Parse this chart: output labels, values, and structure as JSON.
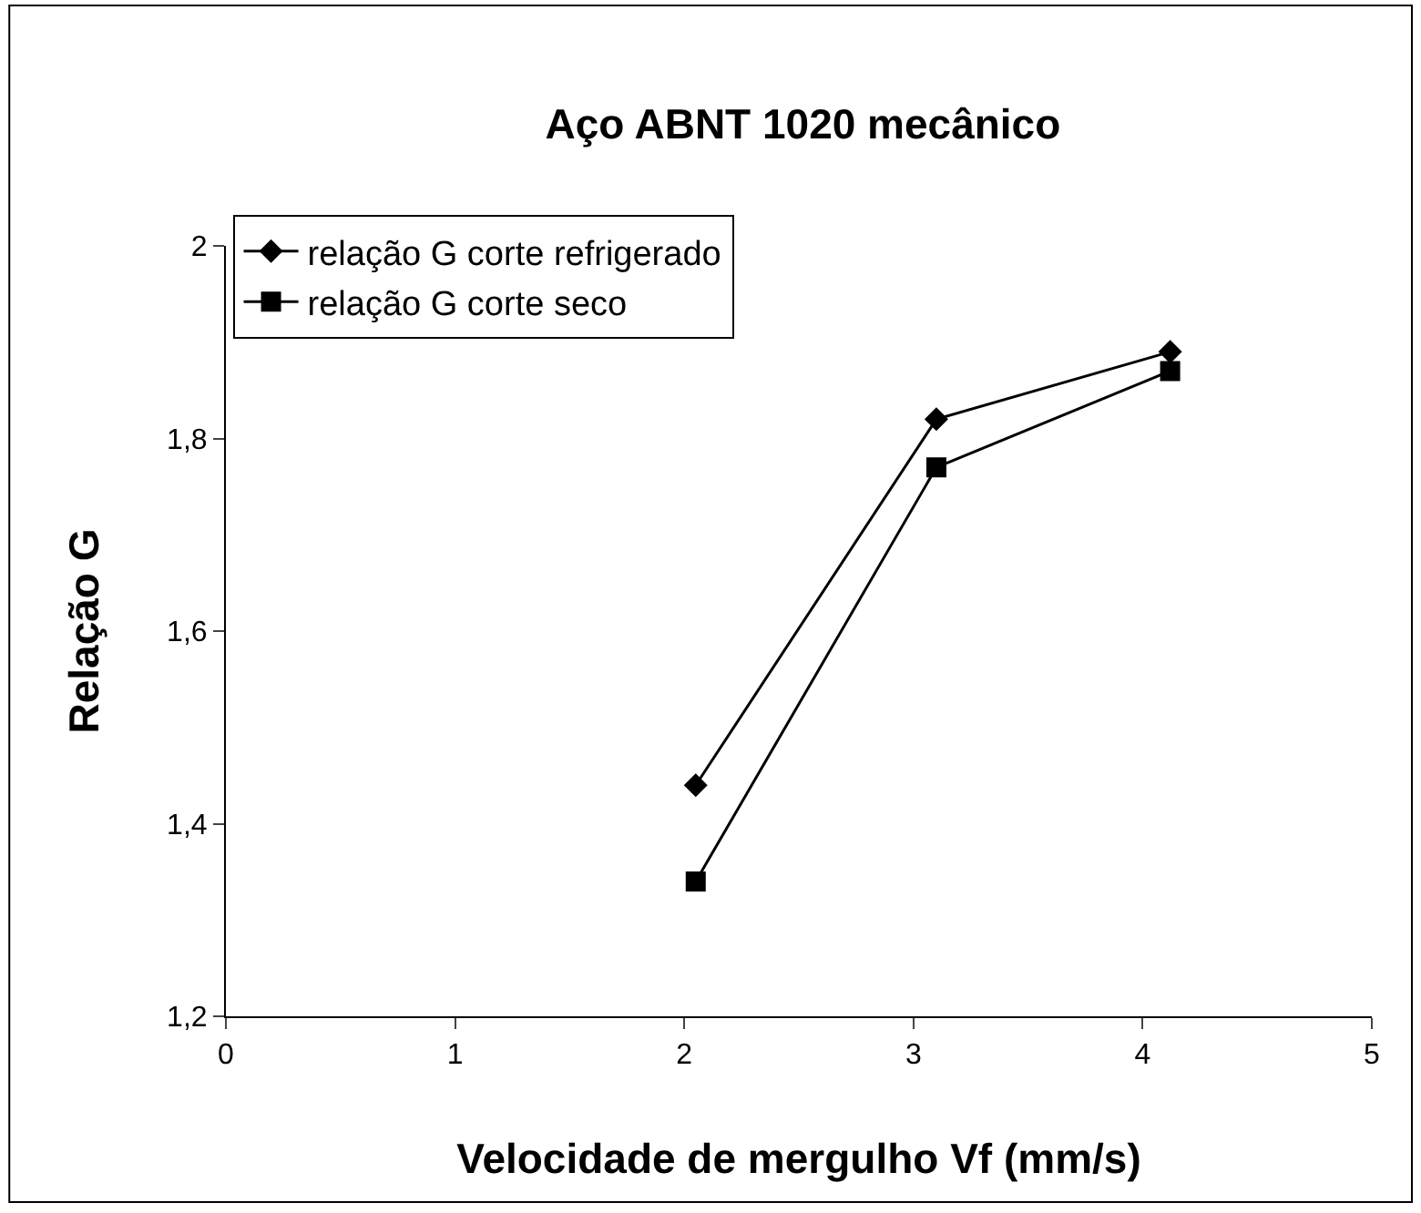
{
  "chart_data": {
    "type": "line",
    "title": "Aço ABNT 1020 mecânico",
    "xlabel": "Velocidade de mergulho Vf (mm/s)",
    "ylabel": "Relação G",
    "series": [
      {
        "name": "relação G corte refrigerado",
        "color": "#000000",
        "marker": "diamond",
        "x": [
          2.05,
          3.1,
          4.12
        ],
        "values": [
          1.44,
          1.82,
          1.89
        ]
      },
      {
        "name": "relação G corte seco",
        "color": "#000000",
        "marker": "square",
        "x": [
          2.05,
          3.1,
          4.12
        ],
        "values": [
          1.34,
          1.77,
          1.87
        ]
      }
    ],
    "xlim": [
      0,
      5
    ],
    "xticks": [
      0,
      1,
      2,
      3,
      4,
      5
    ],
    "ylim": [
      1.2,
      2
    ],
    "yticks": [
      {
        "value": 1.2,
        "label": "1,2"
      },
      {
        "value": 1.4,
        "label": "1,4"
      },
      {
        "value": 1.6,
        "label": "1,6"
      },
      {
        "value": 1.8,
        "label": "1,8"
      },
      {
        "value": 2,
        "label": "2"
      }
    ],
    "legend": "top left",
    "line_style": "solid"
  }
}
